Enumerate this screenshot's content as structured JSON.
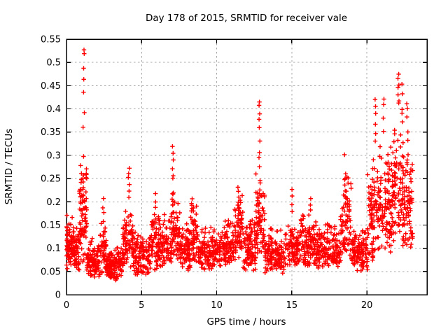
{
  "chart_data": {
    "type": "scatter",
    "title": "Day 178 of 2015, SRMTID for receiver vale",
    "xlabel": "GPS time / hours",
    "ylabel": "SRMTID / TECUs",
    "xlim": [
      0,
      24
    ],
    "ylim": [
      0,
      0.55
    ],
    "xticks": {
      "values": [
        0,
        5,
        10,
        15,
        20
      ],
      "labels": [
        "0",
        "5",
        "10",
        "15",
        "20"
      ]
    },
    "yticks": {
      "values": [
        0,
        0.05,
        0.1,
        0.15,
        0.2,
        0.25,
        0.3,
        0.35,
        0.4,
        0.45,
        0.5,
        0.55
      ],
      "labels": [
        "0",
        "0.05",
        "0.1",
        "0.15",
        "0.2",
        "0.25",
        "0.3",
        "0.35",
        "0.4",
        "0.45",
        "0.5",
        "0.55"
      ]
    },
    "grid": true,
    "legend": "none",
    "marker": "plus",
    "marker_color": "#ff0000",
    "grid_color": "#a8a8a8",
    "axis_color": "#000000",
    "background_color": "#ffffff",
    "seed": 178,
    "scatter_bands": [
      [
        0.0,
        0.5,
        80,
        0.055,
        0.175
      ],
      [
        0.5,
        0.85,
        45,
        0.05,
        0.15
      ],
      [
        0.85,
        1.35,
        70,
        0.07,
        0.3
      ],
      [
        1.35,
        2.2,
        100,
        0.035,
        0.125
      ],
      [
        2.2,
        2.65,
        50,
        0.04,
        0.165
      ],
      [
        2.65,
        3.75,
        130,
        0.03,
        0.105
      ],
      [
        3.75,
        4.45,
        80,
        0.05,
        0.205
      ],
      [
        4.45,
        5.6,
        120,
        0.04,
        0.135
      ],
      [
        5.6,
        6.2,
        70,
        0.05,
        0.185
      ],
      [
        6.2,
        7.0,
        85,
        0.06,
        0.175
      ],
      [
        7.0,
        7.55,
        65,
        0.07,
        0.225
      ],
      [
        7.55,
        8.25,
        85,
        0.05,
        0.16
      ],
      [
        8.25,
        8.75,
        55,
        0.06,
        0.205
      ],
      [
        8.75,
        10.45,
        160,
        0.05,
        0.15
      ],
      [
        10.45,
        11.2,
        85,
        0.06,
        0.175
      ],
      [
        11.2,
        11.75,
        65,
        0.07,
        0.235
      ],
      [
        11.75,
        12.6,
        95,
        0.05,
        0.165
      ],
      [
        12.6,
        13.2,
        70,
        0.08,
        0.27
      ],
      [
        13.2,
        14.6,
        135,
        0.042,
        0.15
      ],
      [
        14.6,
        15.45,
        85,
        0.055,
        0.17
      ],
      [
        15.45,
        16.65,
        120,
        0.06,
        0.18
      ],
      [
        16.65,
        18.25,
        155,
        0.05,
        0.155
      ],
      [
        18.25,
        18.95,
        75,
        0.08,
        0.265
      ],
      [
        18.95,
        20.05,
        110,
        0.05,
        0.16
      ],
      [
        20.05,
        20.85,
        95,
        0.07,
        0.31
      ],
      [
        20.85,
        21.65,
        95,
        0.09,
        0.34
      ],
      [
        21.65,
        22.45,
        100,
        0.1,
        0.385
      ],
      [
        22.45,
        23.05,
        70,
        0.1,
        0.335
      ]
    ],
    "spike_columns": [
      [
        1.15,
        [
          0.528,
          0.52,
          0.49,
          0.462,
          0.434,
          0.392,
          0.359,
          0.298,
          0.26,
          0.245,
          0.23,
          0.215
        ]
      ],
      [
        0.95,
        [
          0.26,
          0.25,
          0.24,
          0.225,
          0.21
        ]
      ],
      [
        2.45,
        [
          0.205,
          0.19,
          0.175,
          0.16
        ]
      ],
      [
        4.15,
        [
          0.272,
          0.26,
          0.25,
          0.237,
          0.222,
          0.208
        ]
      ],
      [
        5.9,
        [
          0.215,
          0.202,
          0.19
        ]
      ],
      [
        7.1,
        [
          0.321,
          0.303,
          0.291,
          0.273,
          0.255,
          0.253,
          0.217,
          0.215,
          0.202,
          0.193
        ]
      ],
      [
        8.35,
        [
          0.205,
          0.195,
          0.185
        ]
      ],
      [
        11.45,
        [
          0.232,
          0.222,
          0.21,
          0.198,
          0.188
        ]
      ],
      [
        12.85,
        [
          0.415,
          0.406,
          0.389,
          0.376,
          0.361,
          0.333,
          0.306,
          0.293,
          0.276,
          0.243,
          0.238,
          0.22,
          0.198,
          0.18,
          0.165
        ]
      ],
      [
        15.0,
        [
          0.225,
          0.21,
          0.196,
          0.18
        ]
      ],
      [
        16.25,
        [
          0.208,
          0.196,
          0.182
        ]
      ],
      [
        18.55,
        [
          0.3,
          0.262,
          0.25,
          0.237,
          0.222,
          0.21,
          0.196
        ]
      ],
      [
        20.55,
        [
          0.42,
          0.405,
          0.388,
          0.368,
          0.348,
          0.33
        ]
      ],
      [
        21.1,
        [
          0.419,
          0.408,
          0.378,
          0.352
        ]
      ],
      [
        22.1,
        [
          0.475,
          0.465,
          0.452,
          0.447,
          0.432,
          0.42,
          0.41
        ]
      ],
      [
        22.35,
        [
          0.452,
          0.43,
          0.4,
          0.39,
          0.372
        ]
      ],
      [
        22.7,
        [
          0.412,
          0.4,
          0.382,
          0.352,
          0.33,
          0.302
        ]
      ]
    ]
  }
}
